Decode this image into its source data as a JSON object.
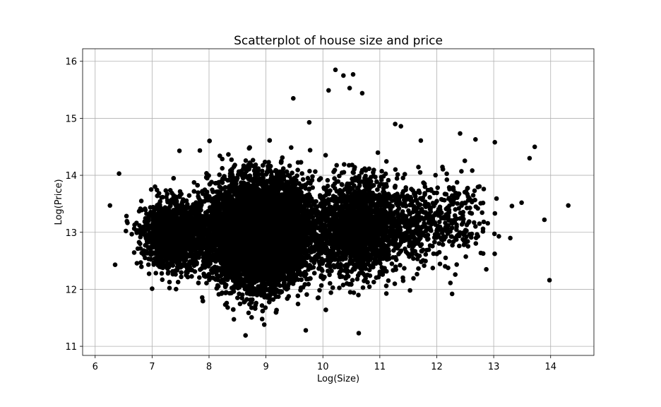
{
  "chart_data": {
    "type": "scatter",
    "title": "Scatterplot of house size and price",
    "xlabel": "Log(Size)",
    "ylabel": "Log(Price)",
    "xlim": [
      5.78,
      14.76
    ],
    "ylim": [
      10.84,
      16.22
    ],
    "xticks": [
      6,
      7,
      8,
      9,
      10,
      11,
      12,
      13,
      14
    ],
    "yticks": [
      11,
      12,
      13,
      14,
      15,
      16
    ],
    "xtick_labels": [
      "6",
      "7",
      "8",
      "9",
      "10",
      "11",
      "12",
      "13",
      "14"
    ],
    "ytick_labels": [
      "11",
      "12",
      "13",
      "14",
      "15",
      "16"
    ],
    "grid": true,
    "legend": "none",
    "marker_color": "#000000",
    "clusters": [
      {
        "center": [
          8.9,
          13.0
        ],
        "spread": [
          0.45,
          0.45
        ],
        "count": 9000
      },
      {
        "center": [
          7.4,
          12.95
        ],
        "spread": [
          0.28,
          0.28
        ],
        "count": 1500
      },
      {
        "center": [
          10.6,
          13.1
        ],
        "spread": [
          0.35,
          0.42
        ],
        "count": 1800
      },
      {
        "center": [
          11.6,
          13.15
        ],
        "spread": [
          0.32,
          0.35
        ],
        "count": 350
      },
      {
        "center": [
          12.3,
          13.3
        ],
        "spread": [
          0.3,
          0.4
        ],
        "count": 180
      }
    ],
    "points": [
      {
        "x": 6.26,
        "y": 13.47
      },
      {
        "x": 6.42,
        "y": 14.03
      },
      {
        "x": 6.35,
        "y": 12.43
      },
      {
        "x": 10.22,
        "y": 15.85
      },
      {
        "x": 10.53,
        "y": 15.77
      },
      {
        "x": 10.36,
        "y": 15.75
      },
      {
        "x": 10.47,
        "y": 15.53
      },
      {
        "x": 10.69,
        "y": 15.44
      },
      {
        "x": 10.1,
        "y": 15.49
      },
      {
        "x": 10.63,
        "y": 11.23
      },
      {
        "x": 9.7,
        "y": 11.28
      },
      {
        "x": 8.97,
        "y": 11.38
      },
      {
        "x": 13.98,
        "y": 12.16
      },
      {
        "x": 14.31,
        "y": 13.47
      },
      {
        "x": 13.89,
        "y": 13.22
      },
      {
        "x": 13.72,
        "y": 14.5
      },
      {
        "x": 13.63,
        "y": 14.3
      },
      {
        "x": 13.02,
        "y": 14.58
      },
      {
        "x": 12.27,
        "y": 11.92
      },
      {
        "x": 11.53,
        "y": 11.98
      },
      {
        "x": 12.87,
        "y": 12.35
      },
      {
        "x": 7.48,
        "y": 14.43
      },
      {
        "x": 7.0,
        "y": 12.01
      },
      {
        "x": 12.68,
        "y": 14.63
      },
      {
        "x": 13.49,
        "y": 13.52
      },
      {
        "x": 13.32,
        "y": 13.46
      },
      {
        "x": 13.09,
        "y": 12.93
      },
      {
        "x": 11.37,
        "y": 14.86
      },
      {
        "x": 11.72,
        "y": 14.61
      },
      {
        "x": 9.48,
        "y": 15.35
      }
    ]
  }
}
